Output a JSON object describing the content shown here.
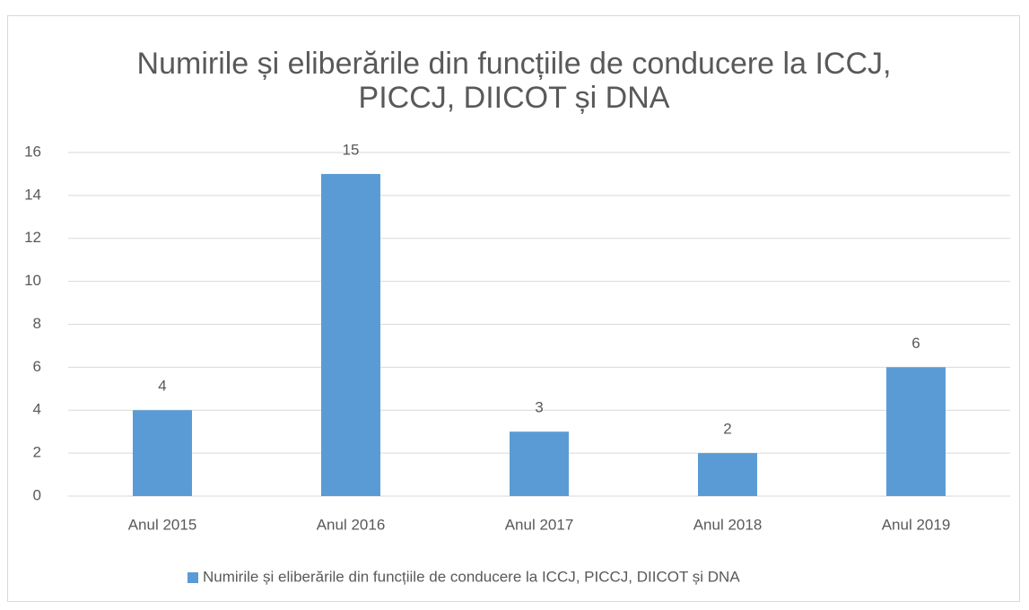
{
  "chart_data": {
    "type": "bar",
    "title": "Numirile și eliberările din funcțiile de conducere la ICCJ, PICCJ, DIICOT și DNA",
    "categories": [
      "Anul 2015",
      "Anul 2016",
      "Anul 2017",
      "Anul 2018",
      "Anul 2019"
    ],
    "series": [
      {
        "name": "Numirile și eliberările din funcțiile de conducere la ICCJ, PICCJ, DIICOT și DNA",
        "color": "#5b9bd5",
        "values": [
          4,
          15,
          3,
          2,
          6
        ]
      }
    ],
    "ylim": [
      0,
      16
    ],
    "yticks": [
      0,
      2,
      4,
      6,
      8,
      10,
      12,
      14,
      16
    ],
    "grid": true,
    "legend": "bottom"
  }
}
